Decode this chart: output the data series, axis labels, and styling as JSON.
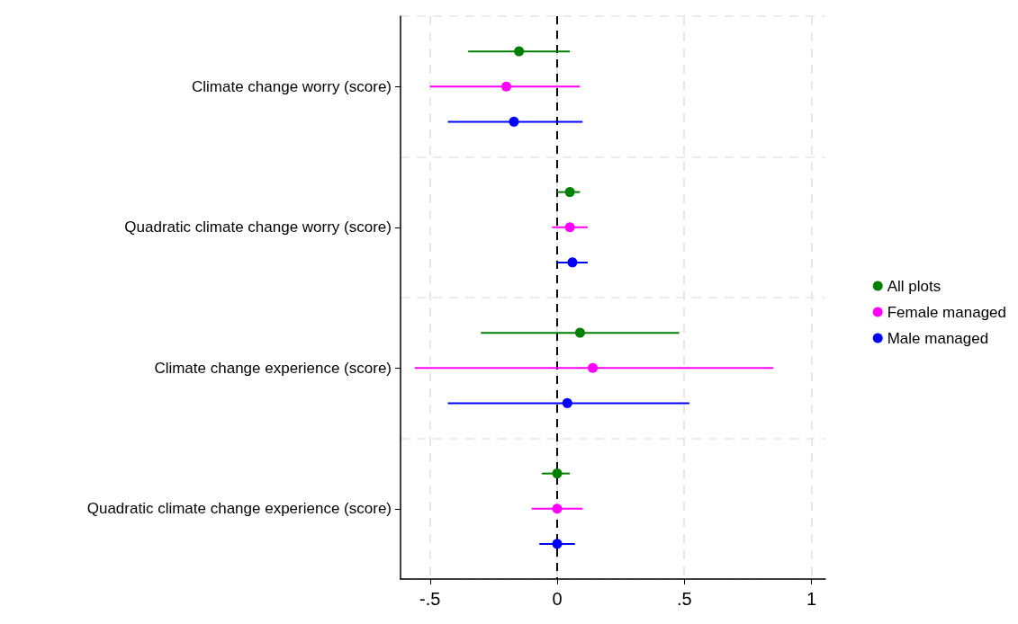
{
  "chart_data": {
    "type": "scatter",
    "orientation": "horizontal",
    "categories": [
      "Climate change worry (score)",
      "Quadratic climate change worry (score)",
      "Climate change experience (score)",
      "Quadratic climate change experience (score)"
    ],
    "series": [
      {
        "name": "All plots",
        "color": "#008000",
        "values": [
          -0.15,
          0.05,
          0.09,
          0
        ],
        "errors": [
          [
            -0.35,
            0.05
          ],
          [
            0,
            0.09
          ],
          [
            -0.3,
            0.48
          ],
          [
            -0.06,
            0.05
          ]
        ]
      },
      {
        "name": "Female managed",
        "color": "#ff00ff",
        "values": [
          -0.2,
          0.05,
          0.14,
          0
        ],
        "errors": [
          [
            -0.5,
            0.09
          ],
          [
            -0.02,
            0.12
          ],
          [
            -0.56,
            0.85
          ],
          [
            -0.1,
            0.1
          ]
        ]
      },
      {
        "name": "Male managed",
        "color": "#0000ff",
        "values": [
          -0.17,
          0.06,
          0.04,
          0
        ],
        "errors": [
          [
            -0.43,
            0.1
          ],
          [
            0,
            0.12
          ],
          [
            -0.43,
            0.52
          ],
          [
            -0.07,
            0.07
          ]
        ]
      }
    ],
    "xlim": [
      -0.616,
      1.055
    ],
    "xticks": [
      {
        "value": -0.5,
        "label": "-.5"
      },
      0,
      {
        "value": 0.5,
        "label": ".5"
      },
      1
    ],
    "ref_lines": [
      {
        "axis": "x",
        "value": 0,
        "color": "#000000",
        "line_style": "dashed"
      }
    ],
    "grid": true,
    "legend": "right",
    "marker": "circle"
  }
}
